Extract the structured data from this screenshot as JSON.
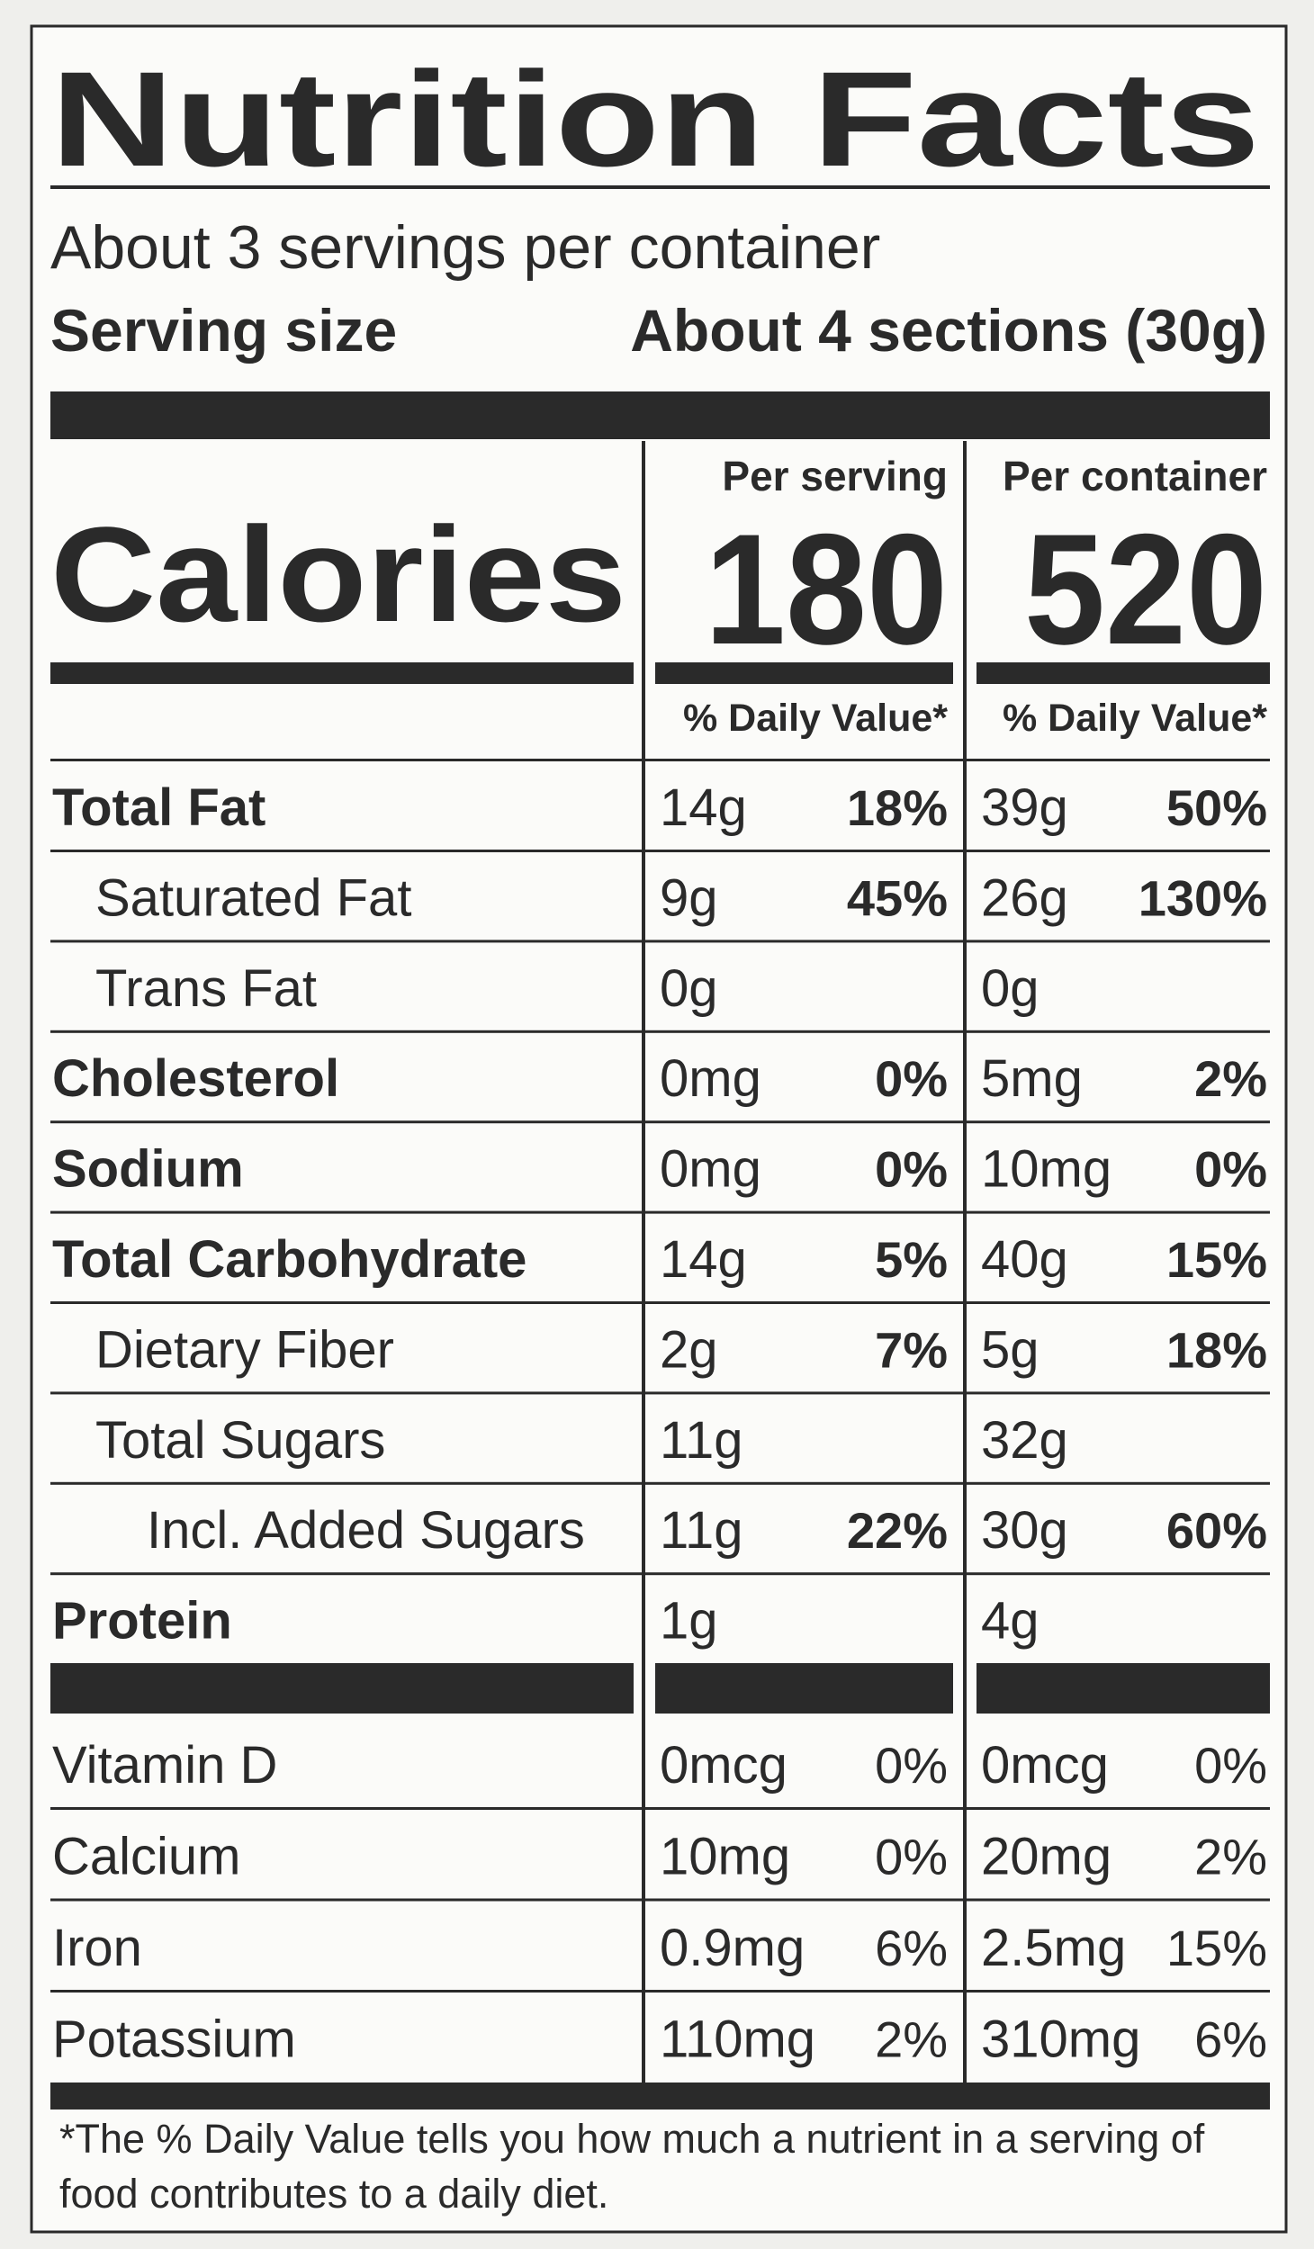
{
  "header": {
    "title": "Nutrition Facts",
    "servings": "About 3 servings per container",
    "serving_size_label": "Serving size",
    "serving_size_value": "About 4 sections (30g)"
  },
  "calories": {
    "label": "Calories",
    "per_serving_label": "Per serving",
    "per_container_label": "Per container",
    "per_serving": "180",
    "per_container": "520",
    "dv_header_serving": "% Daily Value*",
    "dv_header_container": "% Daily Value*"
  },
  "rows": [
    {
      "name": "Total Fat",
      "serving": {
        "amount": "14g",
        "dv": "18%"
      },
      "container": {
        "amount": "39g",
        "dv": "50%"
      }
    },
    {
      "name": "Saturated Fat",
      "serving": {
        "amount": "9g",
        "dv": "45%"
      },
      "container": {
        "amount": "26g",
        "dv": "130%"
      }
    },
    {
      "name": "Trans Fat",
      "serving": {
        "amount": "0g"
      },
      "container": {
        "amount": "0g"
      }
    },
    {
      "name": "Cholesterol",
      "serving": {
        "amount": "0mg",
        "dv": "0%"
      },
      "container": {
        "amount": "5mg",
        "dv": "2%"
      }
    },
    {
      "name": "Sodium",
      "serving": {
        "amount": "0mg",
        "dv": "0%"
      },
      "container": {
        "amount": "10mg",
        "dv": "0%"
      }
    },
    {
      "name": "Total Carbohydrate",
      "serving": {
        "amount": "14g",
        "dv": "5%"
      },
      "container": {
        "amount": "40g",
        "dv": "15%"
      }
    },
    {
      "name": "Dietary Fiber",
      "serving": {
        "amount": "2g",
        "dv": "7%"
      },
      "container": {
        "amount": "5g",
        "dv": "18%"
      }
    },
    {
      "name": "Total Sugars",
      "serving": {
        "amount": "11g"
      },
      "container": {
        "amount": "32g"
      }
    },
    {
      "name": "Incl. Added Sugars",
      "serving": {
        "amount": "11g",
        "dv": "22%"
      },
      "container": {
        "amount": "30g",
        "dv": "60%"
      }
    },
    {
      "name": "Protein",
      "serving": {
        "amount": "1g"
      },
      "container": {
        "amount": "4g"
      }
    }
  ],
  "vitamins": [
    {
      "name": "Vitamin D",
      "serving": {
        "amount": "0mcg",
        "dv": "0%"
      },
      "container": {
        "amount": "0mcg",
        "dv": "0%"
      }
    },
    {
      "name": "Calcium",
      "serving": {
        "amount": "10mg",
        "dv": "0%"
      },
      "container": {
        "amount": "20mg",
        "dv": "2%"
      }
    },
    {
      "name": "Iron",
      "serving": {
        "amount": "0.9mg",
        "dv": "6%"
      },
      "container": {
        "amount": "2.5mg",
        "dv": "15%"
      }
    },
    {
      "name": "Potassium",
      "serving": {
        "amount": "110mg",
        "dv": "2%"
      },
      "container": {
        "amount": "310mg",
        "dv": "6%"
      }
    }
  ],
  "footnote": [
    "*The % Daily Value tells you how much a nutrient in a serving of",
    "food contributes to a daily diet."
  ]
}
